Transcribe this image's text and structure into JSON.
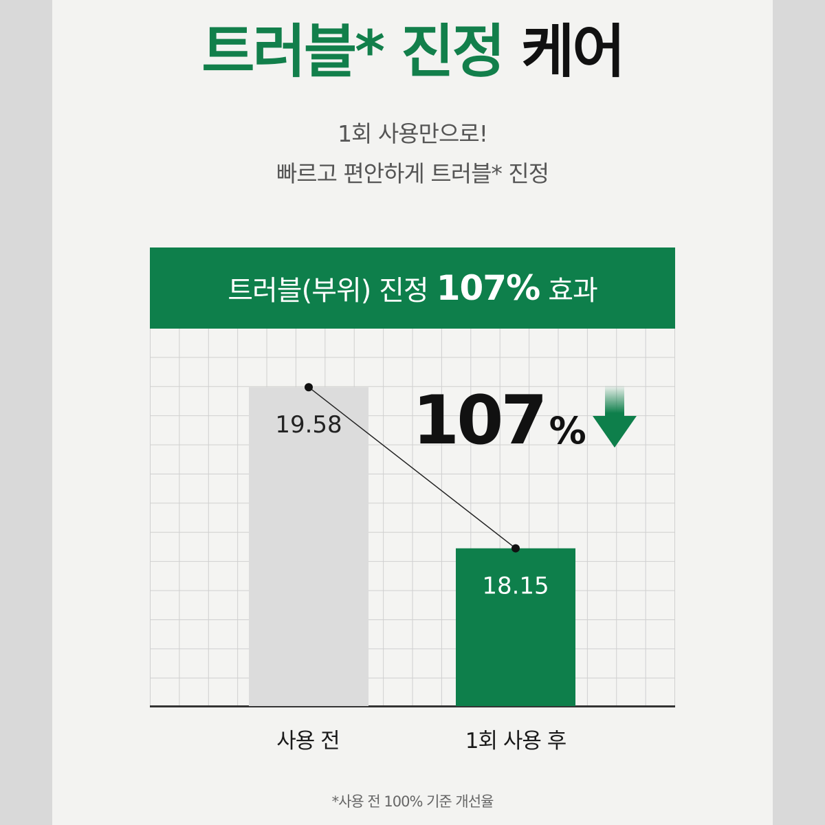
{
  "title": {
    "green": "트러블* 진정",
    "black": "케어"
  },
  "subtitle": [
    "1회 사용만으로!",
    "빠르고 편안하게 트러블* 진정"
  ],
  "banner": {
    "prefix": "트러블(부위) 진정",
    "value": "107%",
    "suffix": "효과"
  },
  "highlight": {
    "value": "107",
    "unit": "%",
    "icon": "arrow-down-icon"
  },
  "footnote": "*사용 전 100% 기준 개선율",
  "colors": {
    "accent": "#0e7f4b",
    "before_bar": "#dcdcdc"
  },
  "chart_data": {
    "type": "bar",
    "categories": [
      "사용 전",
      "1회 사용 후"
    ],
    "values": [
      19.58,
      18.15
    ],
    "value_labels": [
      "19.58",
      "18.15"
    ],
    "bar_colors": [
      "#dcdcdc",
      "#0e7f4b"
    ],
    "connector_line": true,
    "ylim": [
      16.75,
      20.1
    ],
    "grid": true
  }
}
